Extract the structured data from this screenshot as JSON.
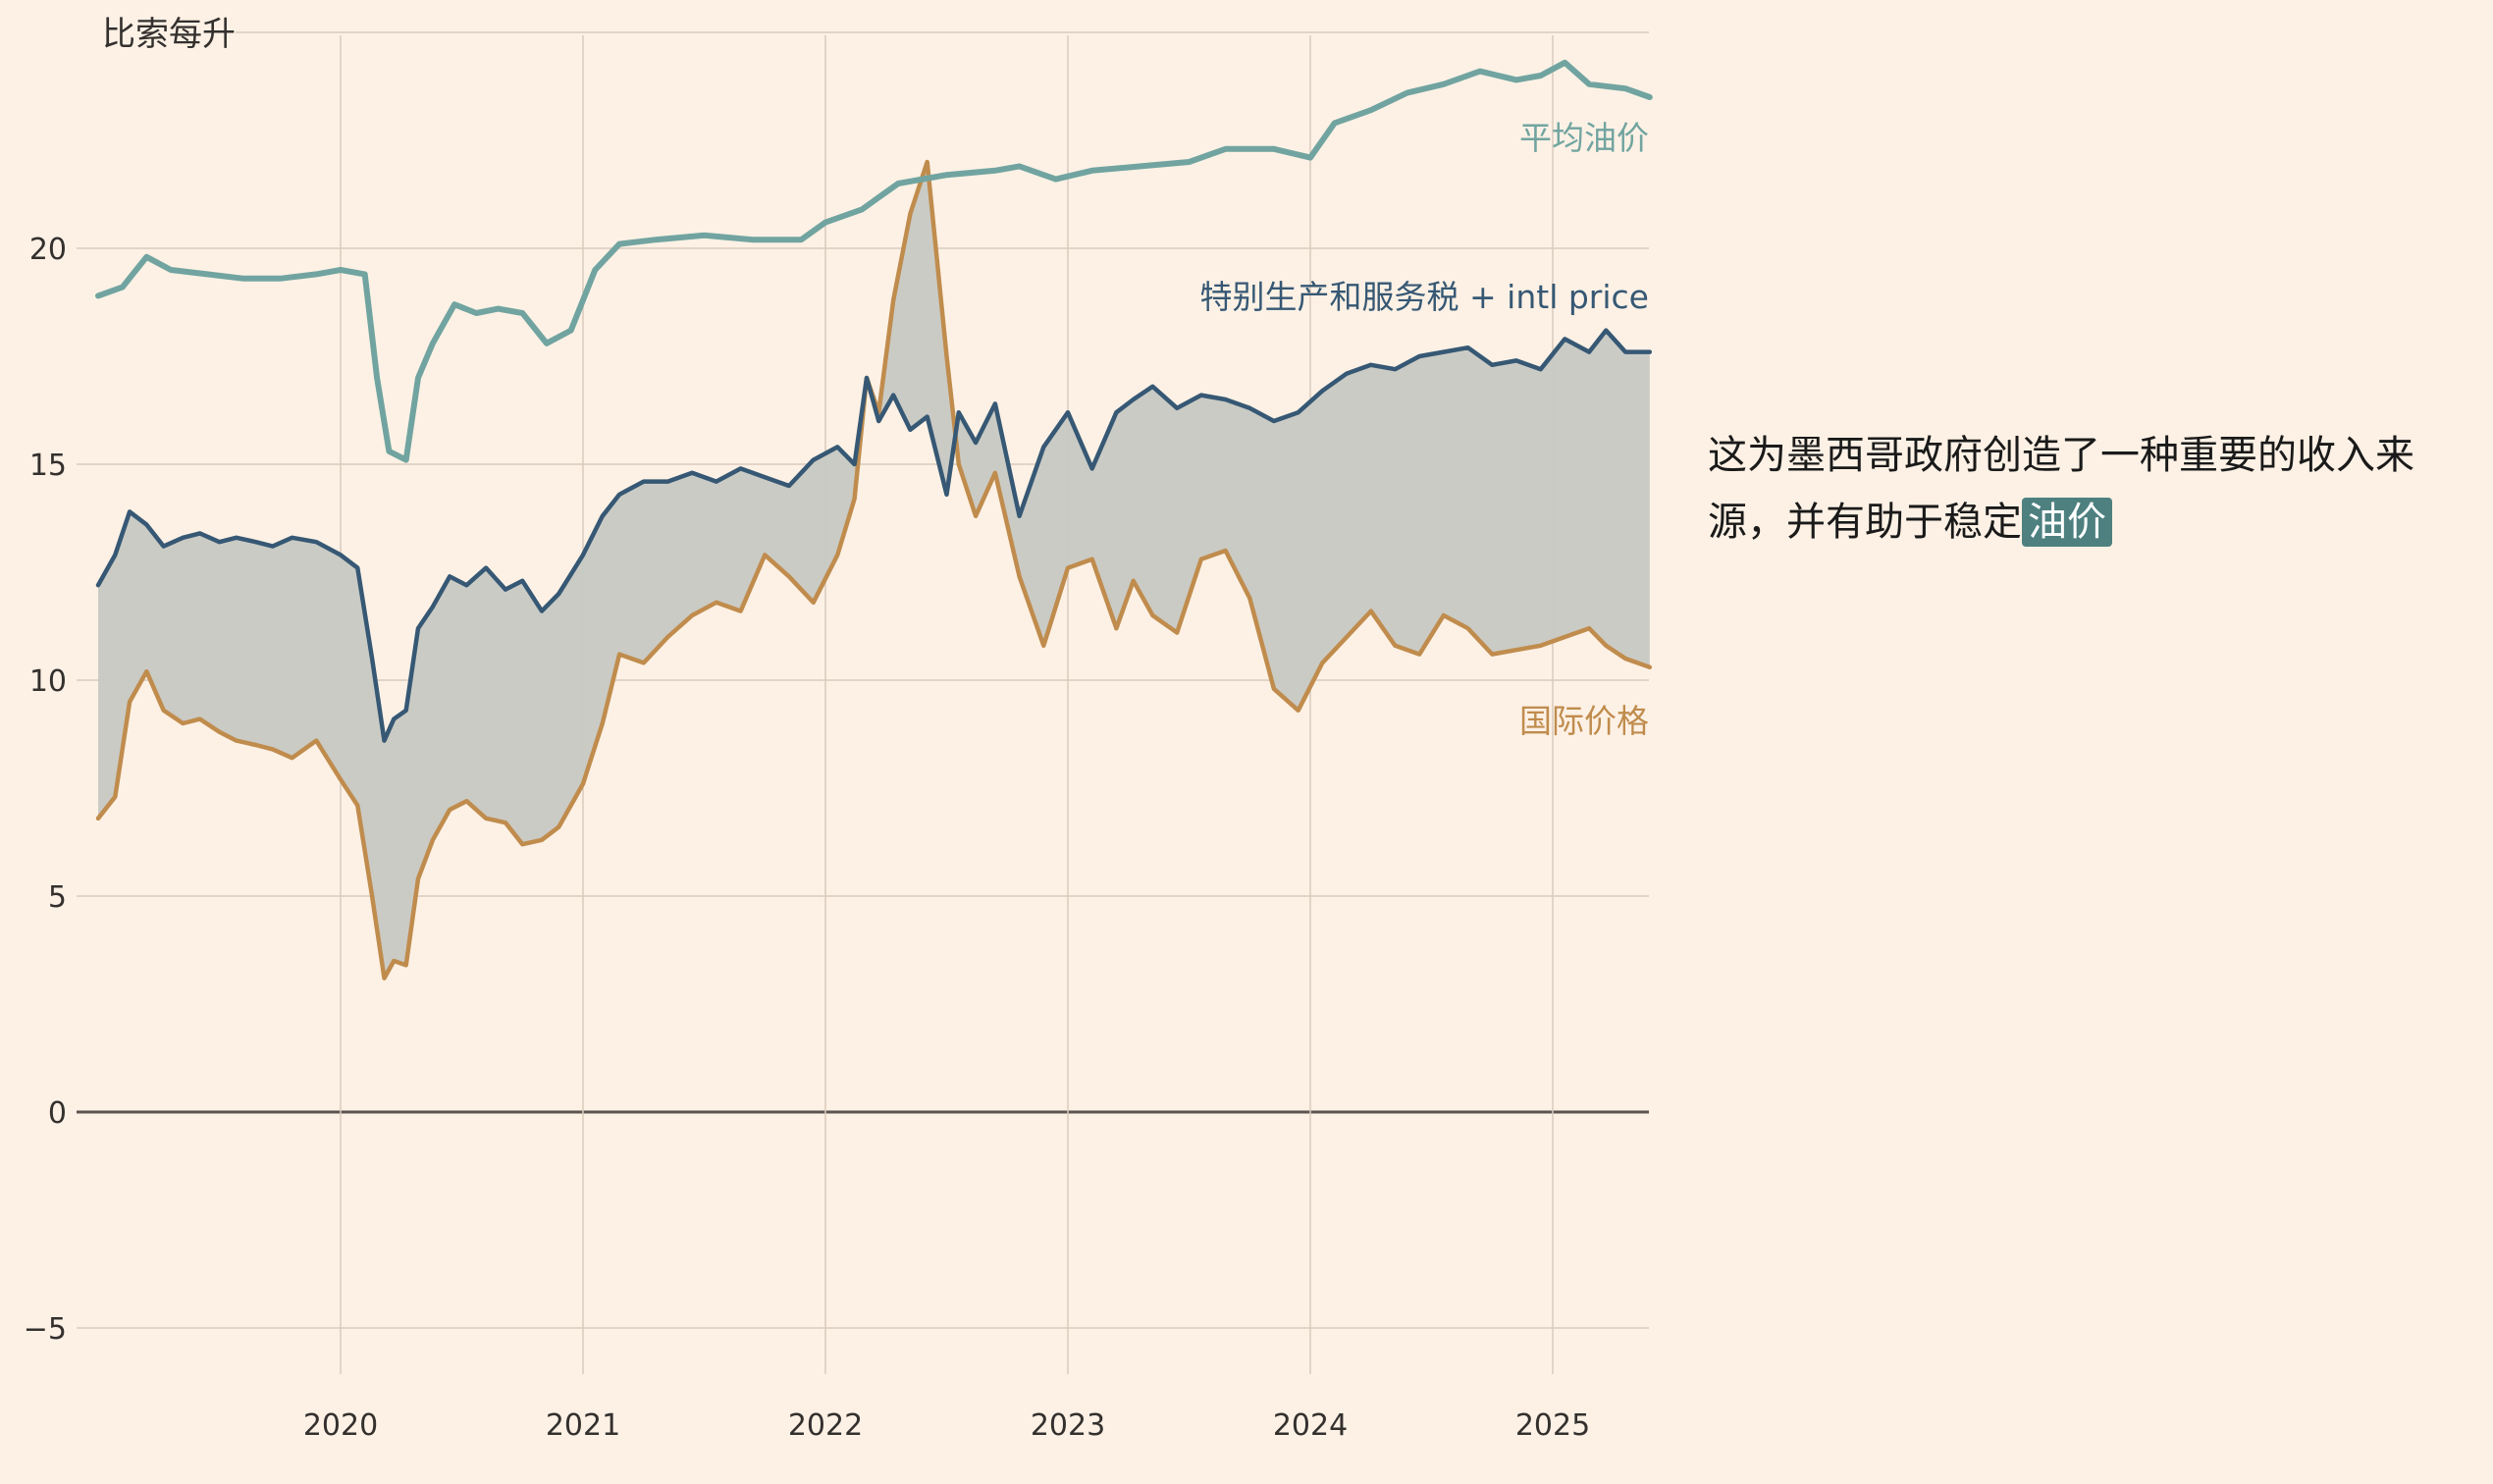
{
  "colors": {
    "background": "#fdf1e5",
    "grid": "#d9cbbd",
    "zero_line": "#5a5350",
    "avg": "#71a4a0",
    "ieps": "#365874",
    "intl": "#c08c4d",
    "fill": "#c7c8c3"
  },
  "annotation": {
    "text": "这为墨西哥政府创造了一种重要的收入来源，并有助于稳定",
    "highlight": "油价"
  },
  "chart_data": {
    "type": "line",
    "title": "",
    "y_unit_label": "比索每升",
    "xlabel": "",
    "ylabel": "",
    "ylim": [
      -6.3,
      25
    ],
    "xlim": [
      2019.0,
      2025.4
    ],
    "grid": true,
    "legend": "direct labels at right end of lines",
    "y_ticks": [
      -5,
      0,
      5,
      10,
      15,
      20,
      25
    ],
    "x_ticks": [
      2020,
      2021,
      2022,
      2023,
      2024,
      2025
    ],
    "x_tick_labels": [
      "2020",
      "2021",
      "2022",
      "2023",
      "2024",
      "2025"
    ],
    "shaded_band": "between 国际价格 and 特别生产和服务税 + intl price",
    "series": [
      {
        "name": "平均油价",
        "label": "平均油价",
        "x": [
          2019.0,
          2019.1,
          2019.2,
          2019.3,
          2019.45,
          2019.6,
          2019.75,
          2019.9,
          2020.0,
          2020.1,
          2020.15,
          2020.2,
          2020.27,
          2020.32,
          2020.38,
          2020.47,
          2020.56,
          2020.65,
          2020.75,
          2020.85,
          2020.95,
          2021.05,
          2021.15,
          2021.3,
          2021.5,
          2021.7,
          2021.9,
          2022.0,
          2022.15,
          2022.3,
          2022.5,
          2022.7,
          2022.8,
          2022.95,
          2023.1,
          2023.3,
          2023.5,
          2023.65,
          2023.85,
          2024.0,
          2024.1,
          2024.25,
          2024.4,
          2024.55,
          2024.7,
          2024.85,
          2024.95,
          2025.05,
          2025.15,
          2025.3,
          2025.4
        ],
        "y": [
          18.9,
          19.1,
          19.8,
          19.5,
          19.4,
          19.3,
          19.3,
          19.4,
          19.5,
          19.4,
          17.0,
          15.3,
          15.1,
          17.0,
          17.8,
          18.7,
          18.5,
          18.6,
          18.5,
          17.8,
          18.1,
          19.5,
          20.1,
          20.2,
          20.3,
          20.2,
          20.2,
          20.6,
          20.9,
          21.5,
          21.7,
          21.8,
          21.9,
          21.6,
          21.8,
          21.9,
          22.0,
          22.3,
          22.3,
          22.1,
          22.9,
          23.2,
          23.6,
          23.8,
          24.1,
          23.9,
          24.0,
          24.3,
          23.8,
          23.7,
          23.5
        ]
      },
      {
        "name": "特别生产和服务税 + intl price",
        "label": "特别生产和服务税 + intl price",
        "x": [
          2019.0,
          2019.07,
          2019.13,
          2019.2,
          2019.27,
          2019.35,
          2019.42,
          2019.5,
          2019.57,
          2019.65,
          2019.72,
          2019.8,
          2019.9,
          2020.0,
          2020.07,
          2020.13,
          2020.18,
          2020.22,
          2020.27,
          2020.32,
          2020.38,
          2020.45,
          2020.52,
          2020.6,
          2020.68,
          2020.75,
          2020.83,
          2020.9,
          2021.0,
          2021.08,
          2021.15,
          2021.25,
          2021.35,
          2021.45,
          2021.55,
          2021.65,
          2021.75,
          2021.85,
          2021.95,
          2022.05,
          2022.12,
          2022.17,
          2022.22,
          2022.28,
          2022.35,
          2022.42,
          2022.5,
          2022.55,
          2022.62,
          2022.7,
          2022.8,
          2022.9,
          2023.0,
          2023.1,
          2023.2,
          2023.27,
          2023.35,
          2023.45,
          2023.55,
          2023.65,
          2023.75,
          2023.85,
          2023.95,
          2024.05,
          2024.15,
          2024.25,
          2024.35,
          2024.45,
          2024.55,
          2024.65,
          2024.75,
          2024.85,
          2024.95,
          2025.05,
          2025.15,
          2025.22,
          2025.3,
          2025.4
        ],
        "y": [
          12.2,
          12.9,
          13.9,
          13.6,
          13.1,
          13.3,
          13.4,
          13.2,
          13.3,
          13.2,
          13.1,
          13.3,
          13.2,
          12.9,
          12.6,
          10.5,
          8.6,
          9.1,
          9.3,
          11.2,
          11.7,
          12.4,
          12.2,
          12.6,
          12.1,
          12.3,
          11.6,
          12.0,
          12.9,
          13.8,
          14.3,
          14.6,
          14.6,
          14.8,
          14.6,
          14.9,
          14.7,
          14.5,
          15.1,
          15.4,
          15.0,
          17.0,
          16.0,
          16.6,
          15.8,
          16.1,
          14.3,
          16.2,
          15.5,
          16.4,
          13.8,
          15.4,
          16.2,
          14.9,
          16.2,
          16.5,
          16.8,
          16.3,
          16.6,
          16.5,
          16.3,
          16.0,
          16.2,
          16.7,
          17.1,
          17.3,
          17.2,
          17.5,
          17.6,
          17.7,
          17.3,
          17.4,
          17.2,
          17.9,
          17.6,
          18.1,
          17.6,
          17.6
        ]
      },
      {
        "name": "国际价格",
        "label": "国际价格",
        "x": [
          2019.0,
          2019.07,
          2019.13,
          2019.2,
          2019.27,
          2019.35,
          2019.42,
          2019.5,
          2019.57,
          2019.65,
          2019.72,
          2019.8,
          2019.9,
          2020.0,
          2020.07,
          2020.13,
          2020.18,
          2020.22,
          2020.27,
          2020.32,
          2020.38,
          2020.45,
          2020.52,
          2020.6,
          2020.68,
          2020.75,
          2020.83,
          2020.9,
          2021.0,
          2021.08,
          2021.15,
          2021.25,
          2021.35,
          2021.45,
          2021.55,
          2021.65,
          2021.75,
          2021.85,
          2021.95,
          2022.05,
          2022.12,
          2022.17,
          2022.22,
          2022.28,
          2022.35,
          2022.42,
          2022.5,
          2022.55,
          2022.62,
          2022.7,
          2022.8,
          2022.9,
          2023.0,
          2023.1,
          2023.2,
          2023.27,
          2023.35,
          2023.45,
          2023.55,
          2023.65,
          2023.75,
          2023.85,
          2023.95,
          2024.05,
          2024.15,
          2024.25,
          2024.35,
          2024.45,
          2024.55,
          2024.65,
          2024.75,
          2024.85,
          2024.95,
          2025.05,
          2025.15,
          2025.22,
          2025.3,
          2025.4
        ],
        "y": [
          6.8,
          7.3,
          9.5,
          10.2,
          9.3,
          9.0,
          9.1,
          8.8,
          8.6,
          8.5,
          8.4,
          8.2,
          8.6,
          7.7,
          7.1,
          5.0,
          3.1,
          3.5,
          3.4,
          5.4,
          6.3,
          7.0,
          7.2,
          6.8,
          6.7,
          6.2,
          6.3,
          6.6,
          7.6,
          9.0,
          10.6,
          10.4,
          11.0,
          11.5,
          11.8,
          11.6,
          12.9,
          12.4,
          11.8,
          12.9,
          14.2,
          17.0,
          16.2,
          18.8,
          20.8,
          22.0,
          17.5,
          15.0,
          13.8,
          14.8,
          12.4,
          10.8,
          12.6,
          12.8,
          11.2,
          12.3,
          11.5,
          11.1,
          12.8,
          13.0,
          11.9,
          9.8,
          9.3,
          10.4,
          11.0,
          11.6,
          10.8,
          10.6,
          11.5,
          11.2,
          10.6,
          10.7,
          10.8,
          11.0,
          11.2,
          10.8,
          10.5,
          10.3
        ]
      }
    ]
  }
}
